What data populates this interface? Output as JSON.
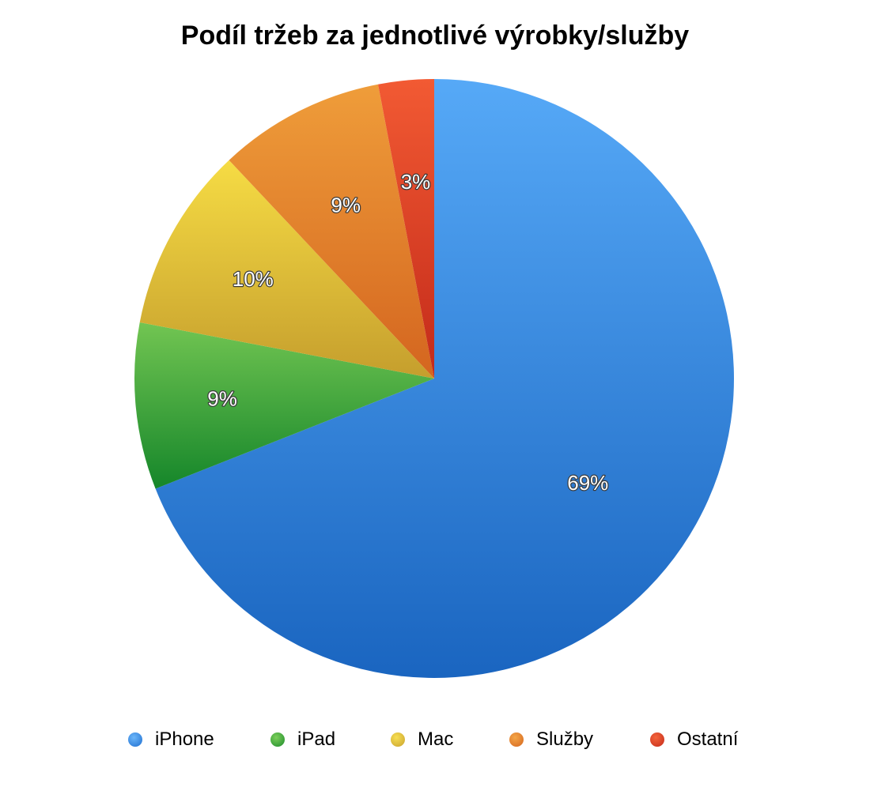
{
  "chart_data": {
    "type": "pie",
    "title": "Podíl tržeb za jednotlivé výrobky/služby",
    "categories": [
      "iPhone",
      "iPad",
      "Mac",
      "Služby",
      "Ostatní"
    ],
    "values": [
      69,
      9,
      10,
      9,
      3
    ],
    "labels": [
      "69%",
      "9%",
      "10%",
      "9%",
      "3%"
    ],
    "colors": [
      "#2f86e0",
      "#34a33a",
      "#ddbf3a",
      "#e8862e",
      "#e2432a"
    ],
    "legend_position": "bottom",
    "start_angle": "12 o'clock",
    "direction": "clockwise"
  }
}
